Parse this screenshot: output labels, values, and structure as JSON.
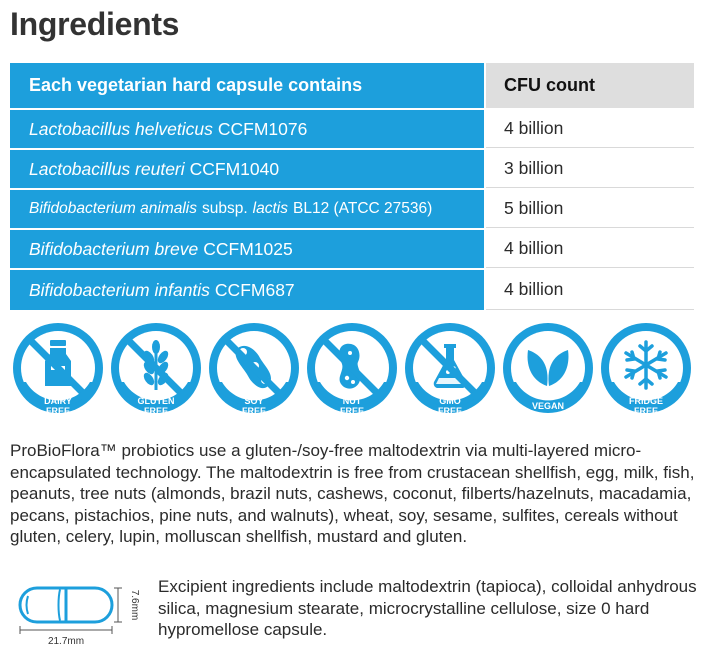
{
  "title": "Ingredients",
  "table": {
    "header": {
      "col1": "Each vegetarian hard capsule contains",
      "col2": "CFU count"
    },
    "rows": [
      {
        "species": "Lactobacillus helveticus",
        "strain": "CCFM1076",
        "cfu": "4 billion"
      },
      {
        "species": "Lactobacillus reuteri",
        "strain": "CCFM1040",
        "cfu": "3 billion"
      },
      {
        "species": "Bifidobacterium animalis",
        "subsp": "subsp.",
        "subsp_name": "lactis",
        "strain": "BL12 (ATCC 27536)",
        "cfu": "5 billion"
      },
      {
        "species": "Bifidobacterium breve",
        "strain": "CCFM1025",
        "cfu": "4 billion"
      },
      {
        "species": "Bifidobacterium infantis",
        "strain": "CCFM687",
        "cfu": "4 billion"
      }
    ]
  },
  "badges": [
    {
      "line1": "DAIRY",
      "line2": "FREE",
      "icon": "milk-bottle-icon"
    },
    {
      "line1": "GLUTEN",
      "line2": "FREE",
      "icon": "wheat-icon"
    },
    {
      "line1": "SOY",
      "line2": "FREE",
      "icon": "soybean-icon"
    },
    {
      "line1": "NUT",
      "line2": "FREE",
      "icon": "peanut-icon"
    },
    {
      "line1": "GMO",
      "line2": "FREE",
      "icon": "flask-icon"
    },
    {
      "line1": "VEGAN",
      "line2": "",
      "icon": "leaf-icon"
    },
    {
      "line1": "FRIDGE",
      "line2": "FREE",
      "icon": "snowflake-icon"
    }
  ],
  "paragraph": "ProBioFlora™ probiotics use a gluten-/soy-free maltodextrin via multi-layered micro-encapsulated technology. The maltodextrin is free from crustacean shellfish, egg, milk, fish, peanuts, tree nuts (almonds, brazil nuts, cashews, coconut, filberts/hazelnuts, macadamia, pecans, pistachios, pine nuts, and walnuts), wheat, soy, sesame, sulfites, cereals without gluten, celery, lupin, molluscan shellfish, mustard and gluten.",
  "capsule": {
    "width_label": "21.7mm",
    "height_label": "7.6mm"
  },
  "excipient": "Excipient ingredients include maltodextrin (tapioca), colloidal anhydrous silica, magnesium stearate, microcrystalline cellulose, size 0 hard hypromellose capsule.",
  "colors": {
    "accent": "#1d9fdc",
    "header_gray": "#dedede",
    "text": "#2b2b2b"
  }
}
